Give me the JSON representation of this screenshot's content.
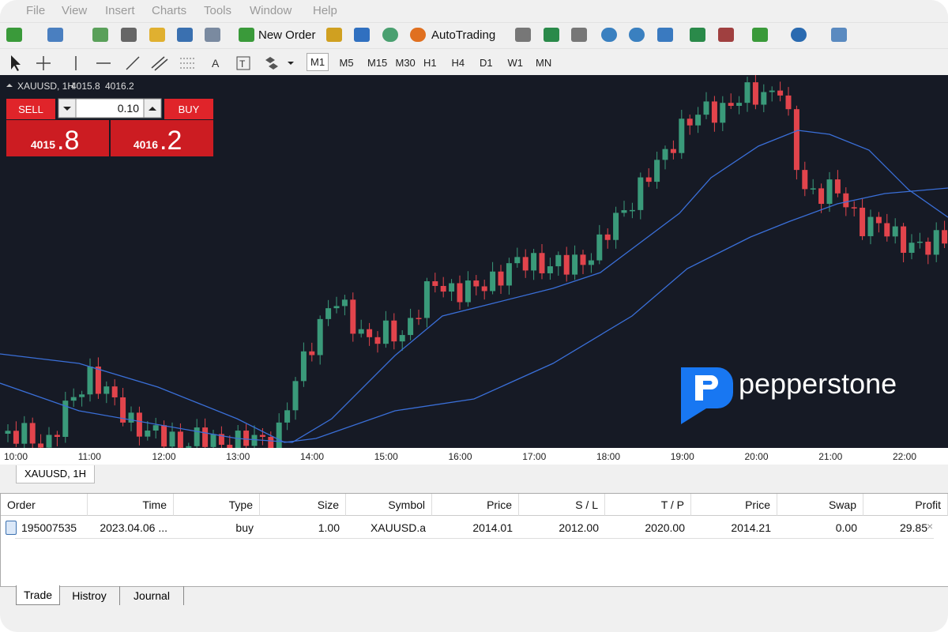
{
  "menu": [
    "File",
    "View",
    "Insert",
    "Charts",
    "Tools",
    "Window",
    "Help"
  ],
  "toolbar": {
    "new_order": "New Order",
    "autotrading": "AutoTrading"
  },
  "timeframes": [
    "M1",
    "M5",
    "M15",
    "M30",
    "H1",
    "H4",
    "D1",
    "W1",
    "MN"
  ],
  "chart": {
    "symbol": "XAUUSD, 1H",
    "bid": "4015.8",
    "ask": "4016.2",
    "time_axis": [
      "10:00",
      "11:00",
      "12:00",
      "13:00",
      "14:00",
      "15:00",
      "16:00",
      "17:00",
      "18:00",
      "19:00",
      "20:00",
      "21:00",
      "22:00"
    ],
    "brand": "pepperstone"
  },
  "trade_panel": {
    "sell": "SELL",
    "buy": "BUY",
    "lot": "0.10",
    "sell_main": "4015",
    "sell_frac": ".8",
    "buy_main": "4016",
    "buy_frac": ".2"
  },
  "chart_tab": "XAUUSD, 1H",
  "terminal": {
    "columns": [
      "Order",
      "Time",
      "Type",
      "Size",
      "Symbol",
      "Price",
      "S / L",
      "T / P",
      "Price",
      "Swap",
      "Profit"
    ],
    "rows": [
      [
        "195007535",
        "2023.04.06 ...",
        "buy",
        "1.00",
        "XAUUSD.a",
        "2014.01",
        "2012.00",
        "2020.00",
        "2014.21",
        "0.00",
        "29.85"
      ]
    ]
  },
  "tabs": [
    "Trade",
    "Histroy",
    "Journal"
  ]
}
